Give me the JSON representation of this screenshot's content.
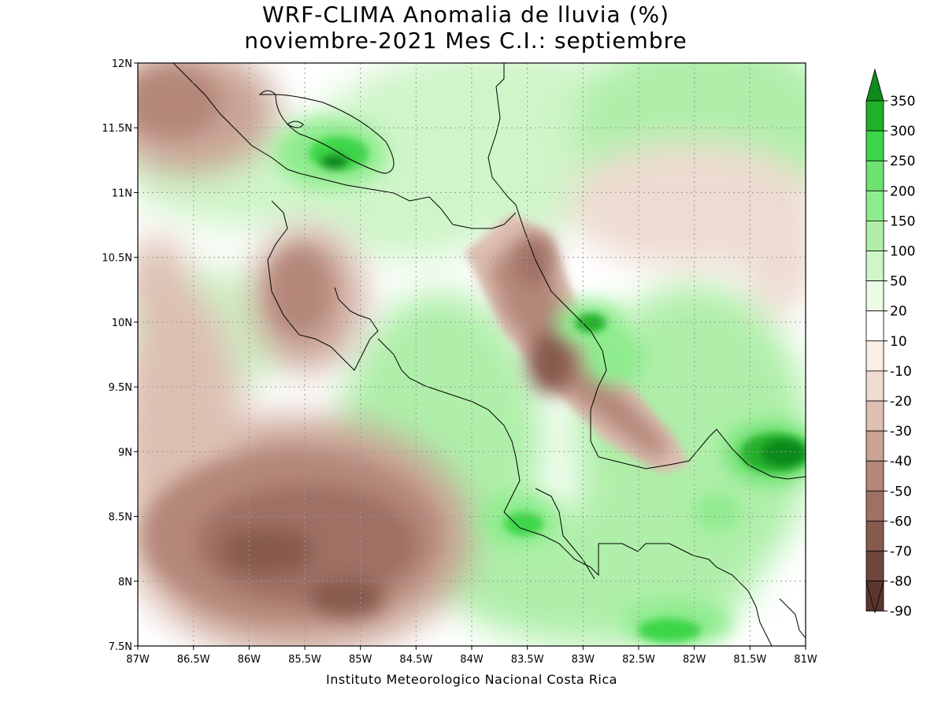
{
  "title": {
    "line1": "WRF-CLIMA Anomalia de lluvia (%)",
    "line2": "noviembre-2021 Mes C.I.: septiembre"
  },
  "credit": "Instituto Meteorologico Nacional Costa Rica",
  "axes": {
    "lon_labels": [
      "87W",
      "86.5W",
      "86W",
      "85.5W",
      "85W",
      "84.5W",
      "84W",
      "83.5W",
      "83W",
      "82.5W",
      "82W",
      "81.5W",
      "81W"
    ],
    "lat_labels": [
      "12N",
      "11.5N",
      "11N",
      "10.5N",
      "10N",
      "9.5N",
      "9N",
      "8.5N",
      "8N",
      "7.5N"
    ],
    "lon_range": [
      -87,
      -81
    ],
    "lat_range": [
      7.5,
      12
    ]
  },
  "colorbar": {
    "labels": [
      "350",
      "300",
      "250",
      "200",
      "150",
      "100",
      "50",
      "20",
      "10",
      "-10",
      "-20",
      "-30",
      "-40",
      "-50",
      "-60",
      "-70",
      "-80",
      "-90"
    ],
    "colors": [
      "#118a1c",
      "#21b02c",
      "#3dd64a",
      "#6ee271",
      "#8fec8e",
      "#afefa9",
      "#cff5c8",
      "#ebfbe6",
      "#ffffff",
      "#faeee5",
      "#eedbd1",
      "#ddc0b2",
      "#c9a394",
      "#b48779",
      "#9f7063",
      "#875a4e",
      "#6f463b",
      "#5c362c"
    ],
    "top_color": "#118a1c",
    "bottom_color": "#5c362c"
  }
}
